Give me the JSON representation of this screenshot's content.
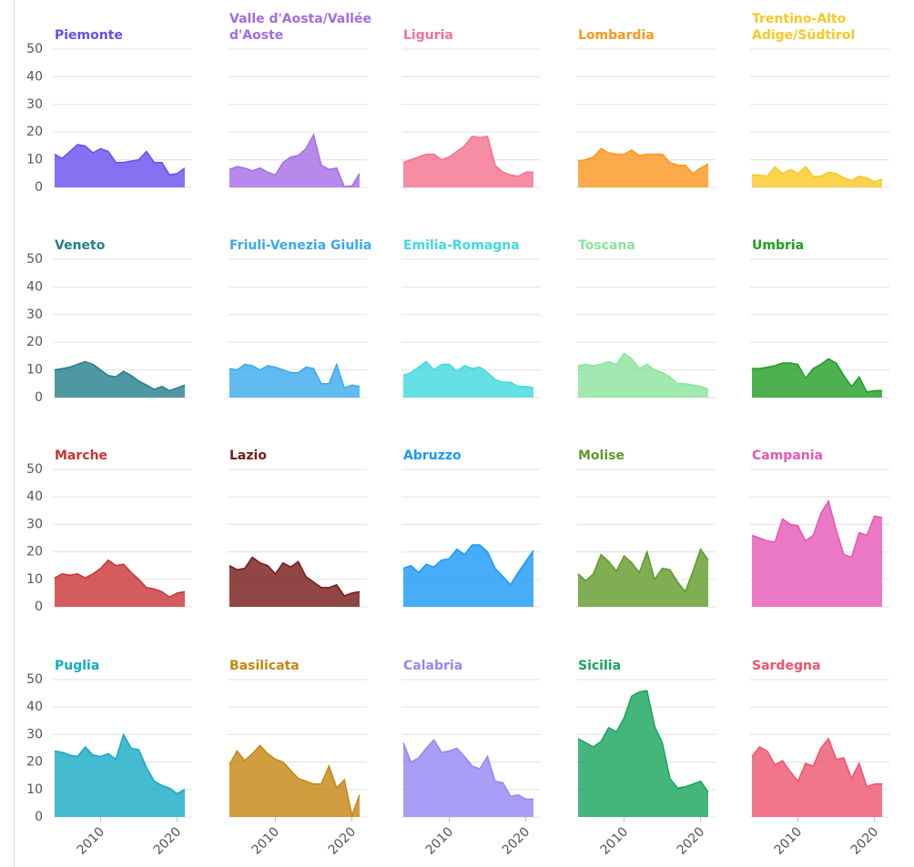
{
  "chart_data": [
    {
      "type": "area",
      "title": "Piemonte",
      "color": "#6a4cf0",
      "x": [
        2004,
        2005,
        2006,
        2007,
        2008,
        2009,
        2010,
        2011,
        2012,
        2013,
        2014,
        2015,
        2016,
        2017,
        2018,
        2019,
        2020,
        2021
      ],
      "values": [
        12,
        10.5,
        13,
        15.5,
        15,
        12.5,
        14,
        13,
        9,
        9,
        9.5,
        10,
        13,
        9,
        9,
        4.5,
        5,
        7
      ],
      "xlim": [
        2004,
        2021
      ],
      "ylim": [
        0,
        50
      ],
      "yticks": [
        0,
        10,
        20,
        30,
        40,
        50
      ]
    },
    {
      "type": "area",
      "title": "Valle d'Aosta/Vallée d'Aoste",
      "color": "#a46be6",
      "x": [
        2004,
        2005,
        2006,
        2007,
        2008,
        2009,
        2010,
        2011,
        2012,
        2013,
        2014,
        2015,
        2016,
        2017,
        2018,
        2019,
        2020,
        2021
      ],
      "values": [
        6.5,
        7.5,
        7,
        6,
        7,
        5.5,
        4.5,
        9,
        11,
        11.5,
        14,
        19,
        8,
        6.5,
        7,
        0.3,
        0.5,
        5
      ],
      "xlim": [
        2004,
        2021
      ],
      "ylim": [
        0,
        50
      ],
      "yticks": [
        0,
        10,
        20,
        30,
        40,
        50
      ]
    },
    {
      "type": "area",
      "title": "Liguria",
      "color": "#f4718f",
      "x": [
        2004,
        2005,
        2006,
        2007,
        2008,
        2009,
        2010,
        2011,
        2012,
        2013,
        2014,
        2015,
        2016,
        2017,
        2018,
        2019,
        2020,
        2021
      ],
      "values": [
        9,
        10,
        11,
        12,
        12,
        10,
        11,
        13,
        15,
        18.5,
        18,
        18.5,
        8,
        5.5,
        4.5,
        4,
        5.5,
        5.5
      ],
      "xlim": [
        2004,
        2021
      ],
      "ylim": [
        0,
        50
      ],
      "yticks": [
        0,
        10,
        20,
        30,
        40,
        50
      ]
    },
    {
      "type": "area",
      "title": "Lombardia",
      "color": "#fb961e",
      "x": [
        2004,
        2005,
        2006,
        2007,
        2008,
        2009,
        2010,
        2011,
        2012,
        2013,
        2014,
        2015,
        2016,
        2017,
        2018,
        2019,
        2020,
        2021
      ],
      "values": [
        9.5,
        10,
        11,
        14,
        12.5,
        12,
        12,
        13.5,
        11.5,
        12,
        12,
        12,
        9,
        8,
        8,
        5,
        7,
        8.5
      ],
      "xlim": [
        2004,
        2021
      ],
      "ylim": [
        0,
        50
      ],
      "yticks": [
        0,
        10,
        20,
        30,
        40,
        50
      ]
    },
    {
      "type": "area",
      "title": "Trentino-Alto Adige/Südtirol",
      "color": "#f9c825",
      "x": [
        2004,
        2005,
        2006,
        2007,
        2008,
        2009,
        2010,
        2011,
        2012,
        2013,
        2014,
        2015,
        2016,
        2017,
        2018,
        2019,
        2020,
        2021
      ],
      "values": [
        4.5,
        4.5,
        4,
        7.5,
        5,
        6.5,
        5,
        7.5,
        4,
        4,
        5.5,
        5,
        3.5,
        2.5,
        4,
        3.5,
        2,
        3
      ],
      "xlim": [
        2004,
        2021
      ],
      "ylim": [
        0,
        50
      ],
      "yticks": [
        0,
        10,
        20,
        30,
        40,
        50
      ]
    },
    {
      "type": "area",
      "title": "Veneto",
      "color": "#237e8a",
      "x": [
        2004,
        2005,
        2006,
        2007,
        2008,
        2009,
        2010,
        2011,
        2012,
        2013,
        2014,
        2015,
        2016,
        2017,
        2018,
        2019,
        2020,
        2021
      ],
      "values": [
        10,
        10.5,
        11,
        12,
        13,
        12,
        10,
        8,
        7.5,
        9.5,
        8,
        6,
        4.5,
        3,
        4,
        2.5,
        3.5,
        4.5
      ],
      "xlim": [
        2004,
        2021
      ],
      "ylim": [
        0,
        50
      ],
      "yticks": [
        0,
        10,
        20,
        30,
        40,
        50
      ]
    },
    {
      "type": "area",
      "title": "Friuli-Venezia Giulia",
      "color": "#3aa9ec",
      "x": [
        2004,
        2005,
        2006,
        2007,
        2008,
        2009,
        2010,
        2011,
        2012,
        2013,
        2014,
        2015,
        2016,
        2017,
        2018,
        2019,
        2020,
        2021
      ],
      "values": [
        10.5,
        10,
        12,
        11.5,
        10,
        11.5,
        11,
        10,
        9,
        9,
        11,
        10.5,
        5,
        5,
        12,
        3.5,
        4.5,
        4
      ],
      "xlim": [
        2004,
        2021
      ],
      "ylim": [
        0,
        50
      ],
      "yticks": [
        0,
        10,
        20,
        30,
        40,
        50
      ]
    },
    {
      "type": "area",
      "title": "Emilia-Romagna",
      "color": "#3fd9de",
      "x": [
        2004,
        2005,
        2006,
        2007,
        2008,
        2009,
        2010,
        2011,
        2012,
        2013,
        2014,
        2015,
        2016,
        2017,
        2018,
        2019,
        2020,
        2021
      ],
      "values": [
        8,
        9,
        11,
        13,
        10,
        12,
        12,
        9.5,
        11.5,
        10.5,
        11,
        9,
        6.5,
        5.5,
        5.5,
        4,
        4,
        3.5
      ],
      "xlim": [
        2004,
        2021
      ],
      "ylim": [
        0,
        50
      ],
      "yticks": [
        0,
        10,
        20,
        30,
        40,
        50
      ]
    },
    {
      "type": "area",
      "title": "Toscana",
      "color": "#8ae39c",
      "x": [
        2004,
        2005,
        2006,
        2007,
        2008,
        2009,
        2010,
        2011,
        2012,
        2013,
        2014,
        2015,
        2016,
        2017,
        2018,
        2019,
        2020,
        2021
      ],
      "values": [
        11.5,
        12,
        11.5,
        12,
        13,
        12,
        16,
        14,
        10.5,
        12,
        10,
        9,
        7.5,
        5,
        5,
        4.5,
        4,
        3
      ],
      "xlim": [
        2004,
        2021
      ],
      "ylim": [
        0,
        50
      ],
      "yticks": [
        0,
        10,
        20,
        30,
        40,
        50
      ]
    },
    {
      "type": "area",
      "title": "Umbria",
      "color": "#1f9e22",
      "x": [
        2004,
        2005,
        2006,
        2007,
        2008,
        2009,
        2010,
        2011,
        2012,
        2013,
        2014,
        2015,
        2016,
        2017,
        2018,
        2019,
        2020,
        2021
      ],
      "values": [
        10.5,
        10.5,
        11,
        11.5,
        12.5,
        12.5,
        12,
        7,
        10.5,
        12,
        14,
        12.5,
        8,
        4,
        7.5,
        2,
        2.5,
        2.5
      ],
      "xlim": [
        2004,
        2021
      ],
      "ylim": [
        0,
        50
      ],
      "yticks": [
        0,
        10,
        20,
        30,
        40,
        50
      ]
    },
    {
      "type": "area",
      "title": "Marche",
      "color": "#c83535",
      "x": [
        2004,
        2005,
        2006,
        2007,
        2008,
        2009,
        2010,
        2011,
        2012,
        2013,
        2014,
        2015,
        2016,
        2017,
        2018,
        2019,
        2020,
        2021
      ],
      "values": [
        10.5,
        12,
        11.5,
        12,
        10.5,
        12,
        14,
        17,
        15,
        15.5,
        12.5,
        10,
        7,
        6.5,
        5.5,
        3.5,
        5,
        5.5
      ],
      "xlim": [
        2004,
        2021
      ],
      "ylim": [
        0,
        50
      ],
      "yticks": [
        0,
        10,
        20,
        30,
        40,
        50
      ]
    },
    {
      "type": "area",
      "title": "Lazio",
      "color": "#761818",
      "x": [
        2004,
        2005,
        2006,
        2007,
        2008,
        2009,
        2010,
        2011,
        2012,
        2013,
        2014,
        2015,
        2016,
        2017,
        2018,
        2019,
        2020,
        2021
      ],
      "values": [
        15,
        13.5,
        14,
        18,
        16,
        15,
        12,
        16,
        14.5,
        16.5,
        11,
        9,
        7,
        7,
        8,
        4,
        5,
        5.5
      ],
      "xlim": [
        2004,
        2021
      ],
      "ylim": [
        0,
        50
      ],
      "yticks": [
        0,
        10,
        20,
        30,
        40,
        50
      ]
    },
    {
      "type": "area",
      "title": "Abruzzo",
      "color": "#1a98f8",
      "x": [
        2004,
        2005,
        2006,
        2007,
        2008,
        2009,
        2010,
        2011,
        2012,
        2013,
        2014,
        2015,
        2016,
        2017,
        2018,
        2019,
        2020,
        2021
      ],
      "values": [
        14,
        15,
        12.5,
        15.5,
        14.5,
        17,
        17.5,
        21,
        19,
        22.5,
        22.5,
        20,
        14,
        11,
        8,
        12.5,
        16.5,
        20.5
      ],
      "xlim": [
        2004,
        2021
      ],
      "ylim": [
        0,
        50
      ],
      "yticks": [
        0,
        10,
        20,
        30,
        40,
        50
      ]
    },
    {
      "type": "area",
      "title": "Molise",
      "color": "#5f9a28",
      "x": [
        2004,
        2005,
        2006,
        2007,
        2008,
        2009,
        2010,
        2011,
        2012,
        2013,
        2014,
        2015,
        2016,
        2017,
        2018,
        2019,
        2020,
        2021
      ],
      "values": [
        12,
        9.5,
        12,
        19,
        16.5,
        13,
        18.5,
        16,
        12.5,
        20,
        10,
        14,
        13.5,
        9,
        5.5,
        13,
        21,
        17
      ],
      "xlim": [
        2004,
        2021
      ],
      "ylim": [
        0,
        50
      ],
      "yticks": [
        0,
        10,
        20,
        30,
        40,
        50
      ]
    },
    {
      "type": "area",
      "title": "Campania",
      "color": "#e656b5",
      "x": [
        2004,
        2005,
        2006,
        2007,
        2008,
        2009,
        2010,
        2011,
        2012,
        2013,
        2014,
        2015,
        2016,
        2017,
        2018,
        2019,
        2020,
        2021
      ],
      "values": [
        26,
        25,
        24,
        23.5,
        32,
        30,
        29.5,
        24,
        26,
        34,
        38.5,
        28,
        19,
        18,
        27,
        26,
        33,
        32.5
      ],
      "xlim": [
        2004,
        2021
      ],
      "ylim": [
        0,
        50
      ],
      "yticks": [
        0,
        10,
        20,
        30,
        40,
        50
      ]
    },
    {
      "type": "area",
      "title": "Puglia",
      "color": "#15aac4",
      "x": [
        2004,
        2005,
        2006,
        2007,
        2008,
        2009,
        2010,
        2011,
        2012,
        2013,
        2014,
        2015,
        2016,
        2017,
        2018,
        2019,
        2020,
        2021
      ],
      "values": [
        24,
        23.5,
        22.5,
        22,
        25.5,
        22.5,
        22,
        23,
        21,
        30,
        25,
        24.5,
        18,
        13,
        11.5,
        10.5,
        8.5,
        10
      ],
      "xlim": [
        2004,
        2021
      ],
      "ylim": [
        0,
        50
      ],
      "yticks": [
        0,
        10,
        20,
        30,
        40,
        50
      ],
      "xticks": [
        2010,
        2020
      ]
    },
    {
      "type": "area",
      "title": "Basilicata",
      "color": "#c4860f",
      "x": [
        2004,
        2005,
        2006,
        2007,
        2008,
        2009,
        2010,
        2011,
        2012,
        2013,
        2014,
        2015,
        2016,
        2017,
        2018,
        2019,
        2020,
        2021
      ],
      "values": [
        19,
        24,
        20.5,
        23,
        26,
        23,
        21,
        20,
        17,
        14,
        13,
        12,
        12,
        18.5,
        10.5,
        13.5,
        0.5,
        8
      ],
      "xlim": [
        2004,
        2021
      ],
      "ylim": [
        0,
        50
      ],
      "yticks": [
        0,
        10,
        20,
        30,
        40,
        50
      ],
      "xticks": [
        2010,
        2020
      ]
    },
    {
      "type": "area",
      "title": "Calabria",
      "color": "#9486f4",
      "x": [
        2004,
        2005,
        2006,
        2007,
        2008,
        2009,
        2010,
        2011,
        2012,
        2013,
        2014,
        2015,
        2016,
        2017,
        2018,
        2019,
        2020,
        2021
      ],
      "values": [
        27,
        20,
        21.5,
        25,
        28,
        23.5,
        24,
        25,
        22,
        18.5,
        17.5,
        22,
        13,
        12.5,
        7.5,
        8,
        6.5,
        6.5
      ],
      "xlim": [
        2004,
        2021
      ],
      "ylim": [
        0,
        50
      ],
      "yticks": [
        0,
        10,
        20,
        30,
        40,
        50
      ],
      "xticks": [
        2010,
        2020
      ]
    },
    {
      "type": "area",
      "title": "Sicilia",
      "color": "#17a45a",
      "x": [
        2004,
        2005,
        2006,
        2007,
        2008,
        2009,
        2010,
        2011,
        2012,
        2013,
        2014,
        2015,
        2016,
        2017,
        2018,
        2019,
        2020,
        2021
      ],
      "values": [
        28.5,
        27,
        25.5,
        27.5,
        32.5,
        31,
        36,
        44,
        45.5,
        46,
        33,
        27,
        14,
        10.5,
        11,
        12,
        13,
        9
      ],
      "xlim": [
        2004,
        2021
      ],
      "ylim": [
        0,
        50
      ],
      "yticks": [
        0,
        10,
        20,
        30,
        40,
        50
      ],
      "xticks": [
        2010,
        2020
      ]
    },
    {
      "type": "area",
      "title": "Sardegna",
      "color": "#ee526e",
      "x": [
        2004,
        2005,
        2006,
        2007,
        2008,
        2009,
        2010,
        2011,
        2012,
        2013,
        2014,
        2015,
        2016,
        2017,
        2018,
        2019,
        2020,
        2021
      ],
      "values": [
        22,
        25.5,
        24,
        19,
        20.5,
        16.5,
        13,
        19.5,
        18.5,
        25,
        28.5,
        21,
        21.5,
        14,
        19.5,
        11,
        12,
        12
      ],
      "xlim": [
        2004,
        2021
      ],
      "ylim": [
        0,
        50
      ],
      "yticks": [
        0,
        10,
        20,
        30,
        40,
        50
      ],
      "xticks": [
        2010,
        2020
      ]
    }
  ]
}
